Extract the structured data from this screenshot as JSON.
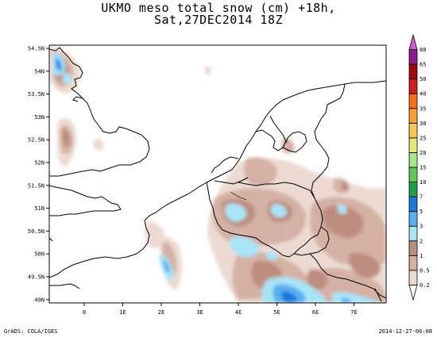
{
  "title": {
    "line1": "UKMO meso total snow (cm) +18h,",
    "line2": "Sat,27DEC2014 18Z"
  },
  "axes": {
    "lat_ticks": [
      "54.5N",
      "54N",
      "53.5N",
      "53N",
      "52.5N",
      "52N",
      "51.5N",
      "51N",
      "50.5N",
      "50N",
      "49.5N",
      "49N"
    ],
    "lon_ticks": [
      "0",
      "1E",
      "2E",
      "3E",
      "4E",
      "5E",
      "6E",
      "7E"
    ]
  },
  "colorbar": {
    "levels": [
      "0.2",
      "0.5",
      "1",
      "2",
      "3",
      "5",
      "7",
      "10",
      "15",
      "20",
      "25",
      "30",
      "35",
      "40",
      "50",
      "65",
      "80"
    ],
    "colors": [
      "#ffffff",
      "#ecdad2",
      "#d4b1a4",
      "#bd8e80",
      "#a8e4f6",
      "#5aaff0",
      "#1e78dc",
      "#1fa048",
      "#5fc85a",
      "#a6e68c",
      "#e6e678",
      "#f5c85a",
      "#f5a032",
      "#f56e1e",
      "#d21e1e",
      "#a00a0a",
      "#8c1e8c",
      "#d25ad2"
    ]
  },
  "footer": {
    "credit": "GrADS: COLA/IGES",
    "timestamp": "2014-12-27-06:08"
  }
}
